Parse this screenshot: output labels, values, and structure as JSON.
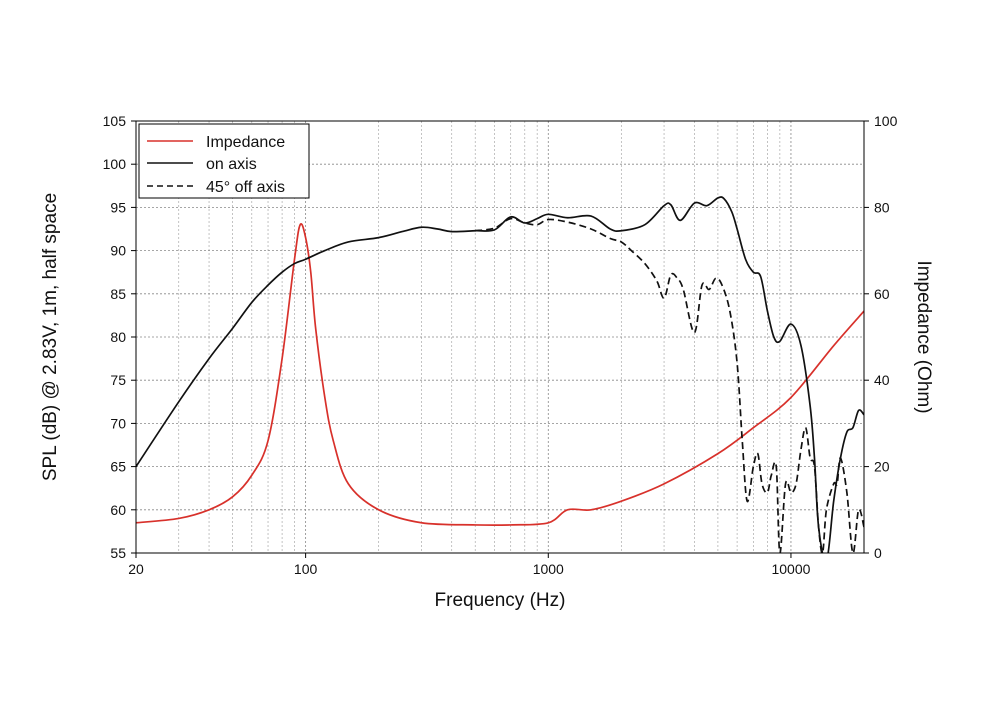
{
  "chart_data": {
    "type": "line",
    "xlabel": "Frequency (Hz)",
    "ylabel_left": "SPL (dB) @ 2.83V, 1m, half space",
    "ylabel_right": "Impedance (Ohm)",
    "x_scale": "log",
    "xlim": [
      20,
      20000
    ],
    "ylim_left": [
      55,
      105
    ],
    "ylim_right": [
      0,
      100
    ],
    "x_tick_labels": [
      "20",
      "100",
      "1000",
      "10000"
    ],
    "y_left_tick_labels": [
      "55",
      "60",
      "65",
      "70",
      "75",
      "80",
      "85",
      "90",
      "95",
      "100",
      "105"
    ],
    "y_right_tick_labels": [
      "0",
      "20",
      "40",
      "60",
      "80",
      "100"
    ],
    "grid": true,
    "legend_position": "top-left",
    "series": [
      {
        "name": "Impedance",
        "axis": "right",
        "color": "#d8312b",
        "style": "solid",
        "x": [
          20,
          30,
          40,
          50,
          60,
          70,
          80,
          90,
          95,
          100,
          105,
          110,
          120,
          130,
          150,
          200,
          300,
          500,
          700,
          1000,
          1200,
          1500,
          2000,
          3000,
          5000,
          7000,
          10000,
          15000,
          20000
        ],
        "y": [
          7,
          8,
          10,
          13,
          18,
          26,
          45,
          68,
          76,
          73,
          65,
          52,
          36,
          26,
          16,
          10,
          7,
          6.5,
          6.5,
          7,
          10,
          10,
          12,
          16,
          23,
          29,
          36,
          48,
          56
        ]
      },
      {
        "name": "on axis",
        "axis": "left",
        "color": "#111111",
        "style": "solid",
        "x": [
          20,
          30,
          40,
          50,
          60,
          70,
          80,
          90,
          100,
          120,
          150,
          200,
          250,
          300,
          350,
          400,
          500,
          600,
          700,
          800,
          900,
          1000,
          1200,
          1500,
          1800,
          2000,
          2500,
          3000,
          3200,
          3500,
          4000,
          4500,
          5000,
          5300,
          5700,
          6000,
          6500,
          7000,
          7500,
          8000,
          8500,
          9000,
          10000,
          11000,
          12000,
          12500,
          13000,
          14000,
          15000,
          16000,
          17000,
          18000,
          19000,
          20000
        ],
        "y": [
          65,
          72.5,
          77.5,
          81,
          84,
          86,
          87.5,
          88.5,
          89,
          90,
          91,
          91.5,
          92.2,
          92.7,
          92.5,
          92.2,
          92.3,
          92.4,
          93.9,
          93.2,
          93.7,
          94.2,
          93.8,
          94,
          92.5,
          92.3,
          93,
          95.2,
          95.3,
          93.5,
          95.5,
          95.2,
          96.1,
          96,
          94.5,
          92.5,
          89,
          87.5,
          87,
          83,
          80,
          79.5,
          81.5,
          79,
          72,
          66,
          58,
          54,
          61,
          66,
          69,
          69.5,
          71.5,
          71
        ]
      },
      {
        "name": "45° off axis",
        "axis": "left",
        "color": "#111111",
        "style": "dashed",
        "x": [
          500,
          600,
          700,
          800,
          900,
          1000,
          1200,
          1500,
          1800,
          2000,
          2200,
          2500,
          2800,
          3000,
          3200,
          3400,
          3600,
          4000,
          4300,
          4600,
          4900,
          5200,
          5600,
          6000,
          6300,
          6600,
          7000,
          7300,
          7600,
          8000,
          8300,
          8700,
          9000,
          9500,
          10000,
          10500,
          11000,
          11500,
          12000,
          12500,
          13000,
          13500,
          14000,
          15000,
          15500,
          16000,
          17000,
          18000,
          19000,
          20000
        ],
        "y": [
          92.3,
          92.6,
          93.7,
          93.2,
          93,
          93.6,
          93.3,
          92.5,
          91.4,
          91,
          90,
          88.5,
          86.5,
          84.5,
          87.2,
          86.8,
          85.5,
          80.5,
          86,
          85.5,
          86.8,
          86,
          83,
          77,
          68,
          61,
          65,
          66.5,
          63,
          62,
          64,
          65,
          55,
          63,
          62,
          63,
          67,
          69.5,
          66,
          65,
          58,
          55,
          60,
          63,
          63,
          66,
          62,
          55,
          60,
          58
        ]
      }
    ]
  }
}
